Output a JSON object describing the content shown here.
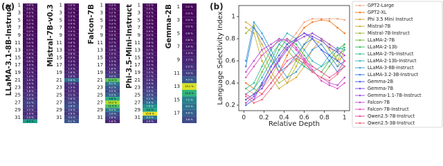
{
  "chart_data": [
    {
      "type": "heatmap",
      "panel_label": "(a)",
      "title": "LLaMA-3.1-8B-Instruct",
      "cmap": "viridis",
      "clim": [
        0,
        16
      ],
      "rows": [
        1,
        null,
        3,
        null,
        5,
        null,
        7,
        null,
        9,
        null,
        11,
        null,
        13,
        null,
        15,
        null,
        17,
        null,
        19,
        null,
        21,
        null,
        23,
        null,
        25,
        null,
        27,
        null,
        29,
        null,
        31,
        null
      ],
      "values": [
        0.4,
        0.5,
        0.3,
        0.3,
        0.2,
        0.3,
        0.4,
        0.3,
        0.5,
        0.6,
        0.4,
        0.5,
        0.7,
        0.6,
        0.8,
        0.9,
        1.0,
        1.2,
        1.1,
        1.3,
        1.5,
        1.4,
        1.6,
        1.8,
        2.0,
        2.4,
        3.1,
        2.7,
        2.2,
        1.9,
        2.5,
        8.9
      ],
      "value_labels": [
        "0.4 %",
        "0.5 %",
        "0.3 %",
        "0.3 %",
        "0.2 %",
        "0.3 %",
        "0.4 %",
        "0.3 %",
        "0.5 %",
        "0.6 %",
        "0.4 %",
        "0.5 %",
        "0.7 %",
        "0.6 %",
        "0.8 %",
        "0.9 %",
        "1.0 %",
        "1.2 %",
        "1.1 %",
        "1.3 %",
        "1.5 %",
        "1.4 %",
        "1.6 %",
        "1.8 %",
        "2.0 %",
        "2.4 %",
        "3.1 %",
        "2.7 %",
        "2.2 %",
        "1.9 %",
        "2.5 %",
        "8.9 %"
      ]
    },
    {
      "type": "heatmap",
      "title": "Mistral-7B-v0.3",
      "cmap": "viridis",
      "clim": [
        0,
        16
      ],
      "rows": [
        1,
        null,
        3,
        null,
        5,
        null,
        7,
        null,
        9,
        null,
        11,
        null,
        13,
        null,
        15,
        null,
        17,
        null,
        19,
        null,
        21,
        null,
        23,
        null,
        25,
        null,
        27,
        null,
        29,
        null,
        31,
        null
      ],
      "values": [
        0.3,
        0.2,
        0.2,
        0.3,
        0.3,
        0.4,
        0.3,
        0.4,
        0.5,
        0.4,
        0.6,
        0.5,
        0.7,
        0.8,
        0.9,
        1.0,
        1.2,
        1.4,
        1.6,
        2.0,
        5.8,
        2.2,
        1.9,
        1.7,
        2.1,
        2.6,
        3.2,
        3.8,
        3.0,
        2.6,
        3.4,
        4.1
      ],
      "value_labels": [
        "0.3 %",
        "0.2 %",
        "0.2 %",
        "0.3 %",
        "0.3 %",
        "0.4 %",
        "0.3 %",
        "0.4 %",
        "0.5 %",
        "0.4 %",
        "0.6 %",
        "0.5 %",
        "0.7 %",
        "0.8 %",
        "0.9 %",
        "1.0 %",
        "1.2 %",
        "1.4 %",
        "1.6 %",
        "2.0 %",
        "5.8 %",
        "2.2 %",
        "1.9 %",
        "1.7 %",
        "2.1 %",
        "2.6 %",
        "3.2 %",
        "3.8 %",
        "3.0 %",
        "2.6 %",
        "3.4 %",
        "4.1 %"
      ]
    },
    {
      "type": "heatmap",
      "title": "Falcon-7B",
      "cmap": "viridis",
      "clim": [
        0,
        16
      ],
      "rows": [
        1,
        null,
        3,
        null,
        5,
        null,
        7,
        null,
        9,
        null,
        11,
        null,
        13,
        null,
        15,
        null,
        17,
        null,
        19,
        null,
        21,
        null,
        23,
        null,
        25,
        null,
        27,
        null,
        29,
        null,
        31,
        null
      ],
      "values": [
        0.3,
        0.3,
        0.2,
        0.3,
        0.4,
        0.3,
        0.4,
        0.4,
        0.5,
        0.6,
        0.7,
        0.8,
        0.9,
        1.0,
        1.1,
        1.3,
        1.5,
        1.8,
        2.2,
        3.0,
        12.0,
        6.1,
        4.2,
        3.5,
        5.0,
        9.8,
        14.2,
        11.5,
        6.4,
        3.9,
        2.8,
        1.6
      ],
      "value_labels": [
        "0.3 %",
        "0.3 %",
        "0.2 %",
        "0.3 %",
        "0.4 %",
        "0.3 %",
        "0.4 %",
        "0.4 %",
        "0.5 %",
        "0.6 %",
        "0.7 %",
        "0.8 %",
        "0.9 %",
        "1.0 %",
        "1.1 %",
        "1.3 %",
        "1.5 %",
        "1.8 %",
        "2.2 %",
        "3.0 %",
        "12.0 %",
        "6.1 %",
        "4.2 %",
        "3.5 %",
        "5.0 %",
        "9.8 %",
        "14.2 %",
        "11.5 %",
        "6.4 %",
        "3.9 %",
        "2.8 %",
        "1.6 %"
      ]
    },
    {
      "type": "heatmap",
      "title": "Phi-3.5-Mini-Instruct",
      "cmap": "viridis",
      "clim": [
        0,
        16
      ],
      "rows": [
        1,
        null,
        3,
        null,
        5,
        null,
        7,
        null,
        9,
        null,
        11,
        null,
        13,
        null,
        15,
        null,
        17,
        null,
        19,
        null,
        21,
        null,
        23,
        null,
        25,
        null,
        27,
        null,
        29,
        null,
        31,
        null
      ],
      "values": [
        0.2,
        0.3,
        0.3,
        0.2,
        0.3,
        0.4,
        0.3,
        0.4,
        0.4,
        0.5,
        0.6,
        0.6,
        0.7,
        0.8,
        0.9,
        1.0,
        1.1,
        1.3,
        1.5,
        1.7,
        2.0,
        2.3,
        2.6,
        3.0,
        3.5,
        4.2,
        5.6,
        7.8,
        9.5,
        15.6,
        6.3,
        2.4
      ],
      "value_labels": [
        "0.2 %",
        "0.3 %",
        "0.3 %",
        "0.2 %",
        "0.3 %",
        "0.4 %",
        "0.3 %",
        "0.4 %",
        "0.4 %",
        "0.5 %",
        "0.6 %",
        "0.6 %",
        "0.7 %",
        "0.8 %",
        "0.9 %",
        "1.0 %",
        "1.1 %",
        "1.3 %",
        "1.5 %",
        "1.7 %",
        "2.0 %",
        "2.3 %",
        "2.6 %",
        "3.0 %",
        "3.5 %",
        "4.2 %",
        "5.6 %",
        "7.8 %",
        "9.5 %",
        "15.6 %",
        "6.3 %",
        "2.4 %"
      ]
    },
    {
      "type": "heatmap",
      "title": "Gemma-2B",
      "cmap": "viridis",
      "clim": [
        0,
        16
      ],
      "rows": [
        1,
        null,
        3,
        null,
        5,
        null,
        7,
        null,
        9,
        null,
        11,
        null,
        13,
        null,
        15,
        null,
        17,
        null
      ],
      "values": [
        0.2,
        0.3,
        0.4,
        0.5,
        0.6,
        0.8,
        1.0,
        1.3,
        1.7,
        2.2,
        3.0,
        4.5,
        15.1,
        10.4,
        7.2,
        6.0,
        4.8,
        3.6
      ],
      "value_labels": [
        "0.2 %",
        "0.3 %",
        "0.4 %",
        "0.5 %",
        "0.6 %",
        "0.8 %",
        "1.0 %",
        "1.3 %",
        "1.7 %",
        "2.2 %",
        "3.0 %",
        "4.5 %",
        "15.1 %",
        "10.4 %",
        "7.2 %",
        "6.0 %",
        "4.8 %",
        "3.6 %"
      ]
    },
    {
      "type": "line",
      "panel_label": "(b)",
      "xlabel": "Relative Depth",
      "ylabel": "Language Selectivity Index",
      "xlim": [
        -0.05,
        1.05
      ],
      "ylim": [
        0.15,
        1.1
      ],
      "xticks": [
        0.0,
        0.2,
        0.4,
        0.6,
        0.8,
        1.0
      ],
      "yticks": [
        0.2,
        0.4,
        0.6,
        0.8,
        1.0
      ],
      "x": [
        0.02,
        0.1,
        0.18,
        0.27,
        0.35,
        0.43,
        0.52,
        0.6,
        0.68,
        0.77,
        0.85,
        0.93,
        1.0
      ],
      "series": [
        {
          "name": "GPT2-Large",
          "color": "#f4a582",
          "values": [
            0.35,
            0.3,
            0.35,
            0.45,
            0.6,
            0.75,
            0.85,
            0.95,
            0.98,
            0.98,
            0.98,
            0.98,
            0.97
          ]
        },
        {
          "name": "GPT2-XL",
          "color": "#f47c20",
          "values": [
            0.4,
            0.35,
            0.3,
            0.4,
            0.5,
            0.65,
            0.8,
            0.9,
            0.95,
            0.97,
            0.96,
            0.9,
            0.85
          ]
        },
        {
          "name": "Phi 3.5 Mini Instruct",
          "color": "#e0a33d",
          "values": [
            0.95,
            0.9,
            0.75,
            0.6,
            0.5,
            0.4,
            0.45,
            0.55,
            0.7,
            0.8,
            0.75,
            0.6,
            0.65
          ]
        },
        {
          "name": "Mistral-7B",
          "color": "#c9b037",
          "values": [
            0.9,
            0.85,
            0.6,
            0.45,
            0.35,
            0.4,
            0.55,
            0.7,
            0.8,
            0.75,
            0.65,
            0.55,
            0.7
          ]
        },
        {
          "name": "Mistral-7B-Instruct",
          "color": "#a4b83b",
          "values": [
            0.85,
            0.92,
            0.7,
            0.5,
            0.4,
            0.45,
            0.6,
            0.75,
            0.85,
            0.8,
            0.7,
            0.6,
            0.75
          ]
        },
        {
          "name": "LLaMA-2-7B",
          "color": "#6fbf3f",
          "values": [
            0.3,
            0.35,
            0.5,
            0.65,
            0.75,
            0.7,
            0.6,
            0.55,
            0.5,
            0.45,
            0.55,
            0.65,
            0.7
          ]
        },
        {
          "name": "LLaMA-2-13b",
          "color": "#3fbf5f",
          "values": [
            0.25,
            0.3,
            0.4,
            0.55,
            0.7,
            0.8,
            0.75,
            0.65,
            0.55,
            0.5,
            0.6,
            0.7,
            0.75
          ]
        },
        {
          "name": "LLaMA-2-7b-Instruct",
          "color": "#3fbf9a",
          "values": [
            0.35,
            0.4,
            0.55,
            0.7,
            0.8,
            0.75,
            0.65,
            0.55,
            0.5,
            0.55,
            0.6,
            0.7,
            0.72
          ]
        },
        {
          "name": "LLaMA-2-13b-Instruct",
          "color": "#3fb8c4",
          "values": [
            0.3,
            0.35,
            0.45,
            0.6,
            0.75,
            0.85,
            0.8,
            0.7,
            0.6,
            0.55,
            0.65,
            0.72,
            0.7
          ]
        },
        {
          "name": "LLaMA-3-8B-Instruct",
          "color": "#3f9fd6",
          "values": [
            0.6,
            0.95,
            0.85,
            0.7,
            0.55,
            0.45,
            0.5,
            0.6,
            0.7,
            0.75,
            0.65,
            0.55,
            0.6
          ]
        },
        {
          "name": "LLaMA-3.2-3B-Instruct",
          "color": "#3f7fe0",
          "values": [
            0.55,
            0.9,
            0.8,
            0.65,
            0.5,
            0.55,
            0.65,
            0.75,
            0.8,
            0.7,
            0.6,
            0.5,
            0.55
          ]
        },
        {
          "name": "Gemma-2B",
          "color": "#4f5fe8",
          "values": [
            0.2,
            0.25,
            0.4,
            0.55,
            0.65,
            0.75,
            0.8,
            0.85,
            0.8,
            0.7,
            0.65,
            0.6,
            0.55
          ]
        },
        {
          "name": "Gemma-7B",
          "color": "#7a4fe8",
          "values": [
            0.25,
            0.3,
            0.35,
            0.5,
            0.6,
            0.7,
            0.8,
            0.85,
            0.82,
            0.78,
            0.72,
            0.68,
            0.6
          ]
        },
        {
          "name": "Gemma-1.1-7B-Instruct",
          "color": "#a04fe0",
          "values": [
            0.22,
            0.28,
            0.38,
            0.5,
            0.62,
            0.72,
            0.78,
            0.82,
            0.85,
            0.8,
            0.75,
            0.7,
            0.65
          ]
        },
        {
          "name": "Falcon-7B",
          "color": "#c44fd6",
          "values": [
            0.5,
            0.6,
            0.7,
            0.75,
            0.8,
            0.78,
            0.7,
            0.6,
            0.5,
            0.45,
            0.4,
            0.38,
            0.45
          ]
        },
        {
          "name": "Falcon-7B-Instruct",
          "color": "#e04fc4",
          "values": [
            0.45,
            0.55,
            0.65,
            0.72,
            0.78,
            0.8,
            0.72,
            0.62,
            0.52,
            0.42,
            0.38,
            0.35,
            0.4
          ]
        },
        {
          "name": "Qwen2.5-7B-Instruct",
          "color": "#f04fa0",
          "values": [
            0.3,
            0.25,
            0.3,
            0.4,
            0.5,
            0.6,
            0.65,
            0.6,
            0.55,
            0.5,
            0.45,
            0.5,
            0.6
          ]
        },
        {
          "name": "Qwen2.5-3B-Instruct",
          "color": "#f06a7a",
          "values": [
            0.28,
            0.22,
            0.25,
            0.35,
            0.45,
            0.55,
            0.62,
            0.58,
            0.5,
            0.45,
            0.42,
            0.48,
            0.55
          ]
        }
      ]
    }
  ]
}
